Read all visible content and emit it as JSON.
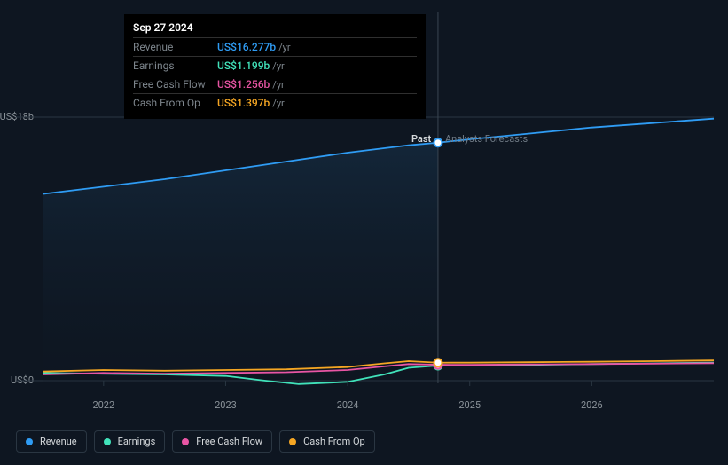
{
  "chart": {
    "type": "line",
    "background_color": "#0e1621",
    "grid_color": "#2a3642",
    "ylim": [
      0,
      18
    ],
    "y_ticks": [
      {
        "value": 18,
        "label": "US$18b"
      },
      {
        "value": 0,
        "label": "US$0"
      }
    ],
    "x_ticks": [
      "2022",
      "2023",
      "2024",
      "2025",
      "2026"
    ],
    "x_domain": [
      2021.5,
      2027.0
    ],
    "divider_x": 2024.74,
    "past_label": "Past",
    "forecast_label": "Analysts Forecasts",
    "past_shade_gradient": [
      "#16324a",
      "#0e1621"
    ],
    "series": [
      {
        "name": "Revenue",
        "color": "#2f9cf4",
        "fill_opacity": 0.0,
        "points": [
          {
            "x": 2021.5,
            "y": 12.8
          },
          {
            "x": 2022.0,
            "y": 13.3
          },
          {
            "x": 2022.5,
            "y": 13.8
          },
          {
            "x": 2023.0,
            "y": 14.4
          },
          {
            "x": 2023.5,
            "y": 15.0
          },
          {
            "x": 2024.0,
            "y": 15.6
          },
          {
            "x": 2024.5,
            "y": 16.1
          },
          {
            "x": 2024.74,
            "y": 16.277
          },
          {
            "x": 2025.0,
            "y": 16.5
          },
          {
            "x": 2025.5,
            "y": 16.9
          },
          {
            "x": 2026.0,
            "y": 17.3
          },
          {
            "x": 2026.5,
            "y": 17.6
          },
          {
            "x": 2027.0,
            "y": 17.9
          }
        ]
      },
      {
        "name": "Earnings",
        "color": "#41e2ba",
        "fill_opacity": 0.0,
        "points": [
          {
            "x": 2021.5,
            "y": 0.7
          },
          {
            "x": 2022.0,
            "y": 0.65
          },
          {
            "x": 2022.5,
            "y": 0.6
          },
          {
            "x": 2023.0,
            "y": 0.5
          },
          {
            "x": 2023.3,
            "y": 0.2
          },
          {
            "x": 2023.6,
            "y": -0.05
          },
          {
            "x": 2024.0,
            "y": 0.1
          },
          {
            "x": 2024.3,
            "y": 0.6
          },
          {
            "x": 2024.5,
            "y": 1.05
          },
          {
            "x": 2024.74,
            "y": 1.199
          },
          {
            "x": 2025.0,
            "y": 1.2
          },
          {
            "x": 2025.5,
            "y": 1.25
          },
          {
            "x": 2026.0,
            "y": 1.3
          },
          {
            "x": 2026.5,
            "y": 1.35
          },
          {
            "x": 2027.0,
            "y": 1.4
          }
        ]
      },
      {
        "name": "Free Cash Flow",
        "color": "#e855a4",
        "fill_opacity": 0.0,
        "points": [
          {
            "x": 2021.5,
            "y": 0.6
          },
          {
            "x": 2022.0,
            "y": 0.7
          },
          {
            "x": 2022.5,
            "y": 0.65
          },
          {
            "x": 2023.0,
            "y": 0.7
          },
          {
            "x": 2023.5,
            "y": 0.75
          },
          {
            "x": 2024.0,
            "y": 0.9
          },
          {
            "x": 2024.3,
            "y": 1.15
          },
          {
            "x": 2024.5,
            "y": 1.3
          },
          {
            "x": 2024.74,
            "y": 1.256
          },
          {
            "x": 2025.0,
            "y": 1.25
          },
          {
            "x": 2025.5,
            "y": 1.28
          },
          {
            "x": 2026.0,
            "y": 1.3
          },
          {
            "x": 2026.5,
            "y": 1.33
          },
          {
            "x": 2027.0,
            "y": 1.36
          }
        ]
      },
      {
        "name": "Cash From Op",
        "color": "#f5a623",
        "fill_opacity": 0.0,
        "points": [
          {
            "x": 2021.5,
            "y": 0.8
          },
          {
            "x": 2022.0,
            "y": 0.9
          },
          {
            "x": 2022.5,
            "y": 0.85
          },
          {
            "x": 2023.0,
            "y": 0.9
          },
          {
            "x": 2023.5,
            "y": 0.95
          },
          {
            "x": 2024.0,
            "y": 1.1
          },
          {
            "x": 2024.3,
            "y": 1.35
          },
          {
            "x": 2024.5,
            "y": 1.5
          },
          {
            "x": 2024.74,
            "y": 1.397
          },
          {
            "x": 2025.0,
            "y": 1.4
          },
          {
            "x": 2025.5,
            "y": 1.43
          },
          {
            "x": 2026.0,
            "y": 1.46
          },
          {
            "x": 2026.5,
            "y": 1.5
          },
          {
            "x": 2027.0,
            "y": 1.55
          }
        ]
      }
    ],
    "marker_x": 2024.74,
    "marker_radius": 4.5,
    "line_width": 1.8
  },
  "tooltip": {
    "date": "Sep 27 2024",
    "unit": "/yr",
    "rows": [
      {
        "label": "Revenue",
        "value": "US$16.277b",
        "color": "#2f9cf4"
      },
      {
        "label": "Earnings",
        "value": "US$1.199b",
        "color": "#41e2ba"
      },
      {
        "label": "Free Cash Flow",
        "value": "US$1.256b",
        "color": "#e855a4"
      },
      {
        "label": "Cash From Op",
        "value": "US$1.397b",
        "color": "#f5a623"
      }
    ]
  },
  "legend": [
    {
      "label": "Revenue",
      "color": "#2f9cf4"
    },
    {
      "label": "Earnings",
      "color": "#41e2ba"
    },
    {
      "label": "Free Cash Flow",
      "color": "#e855a4"
    },
    {
      "label": "Cash From Op",
      "color": "#f5a623"
    }
  ]
}
